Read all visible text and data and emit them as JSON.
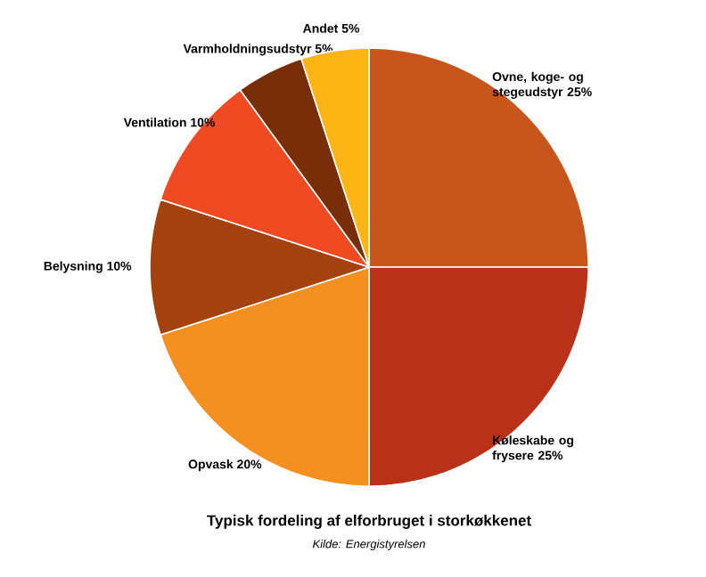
{
  "chart_data": {
    "type": "pie",
    "title": "Typisk fordeling af elforbruget i storkøkkenet",
    "annotations": [
      "Kilde: Energistyrelsen"
    ],
    "categories": [
      "Ovne, koge- og stegeudstyr",
      "Køleskabe og frysere",
      "Opvask",
      "Belysning",
      "Ventilation",
      "Varmholdningsudstyr",
      "Andet"
    ],
    "values": [
      25,
      25,
      20,
      10,
      10,
      5,
      5
    ],
    "value_labels": [
      "25%",
      "25%",
      "20%",
      "10%",
      "10%",
      "5%",
      "5%"
    ],
    "colors": [
      "#c8561c",
      "#b93119",
      "#f39020",
      "#a3420e",
      "#f04a23",
      "#7a2e08",
      "#fdb515"
    ]
  }
}
